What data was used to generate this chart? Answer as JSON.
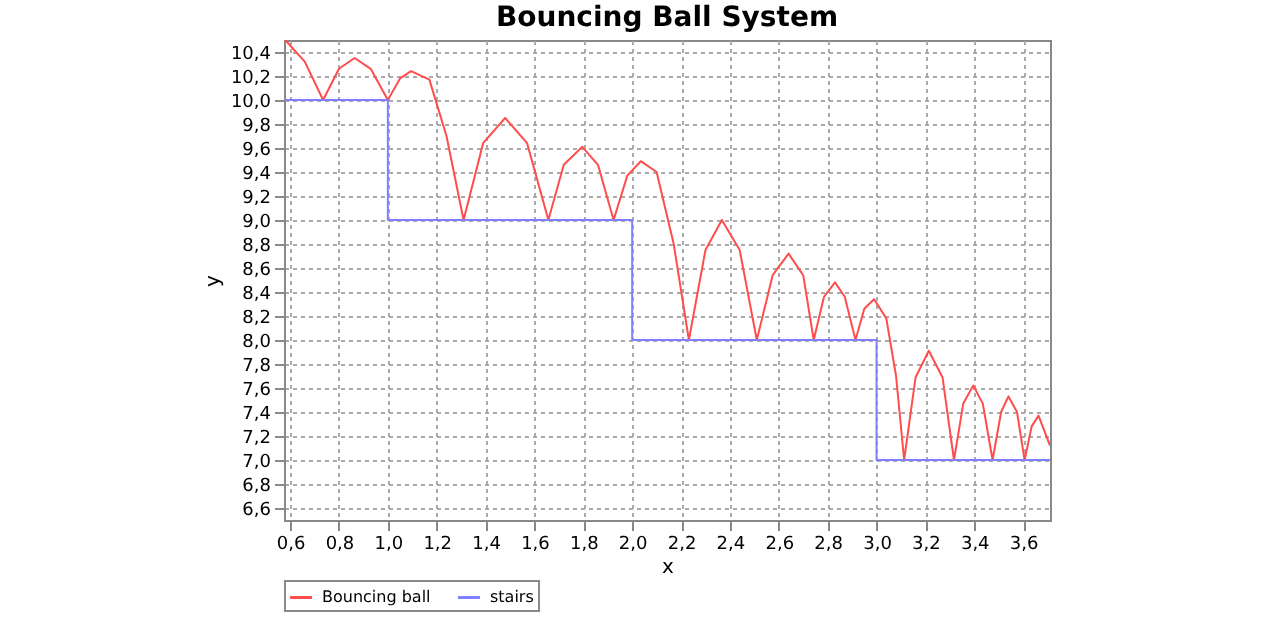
{
  "chart_data": {
    "type": "line",
    "title": "Bouncing Ball System",
    "xlabel": "x",
    "ylabel": "y",
    "series": [
      {
        "name": "Bouncing ball",
        "color": "#ff4d4d",
        "type": "line",
        "x": [
          0.58,
          0.66,
          0.735,
          0.8,
          0.864,
          0.93,
          1.0,
          1.05,
          1.095,
          1.17,
          1.24,
          1.31,
          1.39,
          1.48,
          1.57,
          1.657,
          1.72,
          1.796,
          1.86,
          1.924,
          1.98,
          2.035,
          2.1,
          2.17,
          2.232,
          2.3,
          2.367,
          2.44,
          2.51,
          2.575,
          2.64,
          2.7,
          2.743,
          2.785,
          2.83,
          2.87,
          2.914,
          2.95,
          2.99,
          3.04,
          3.08,
          3.113,
          3.16,
          3.214,
          3.27,
          3.317,
          3.355,
          3.396,
          3.435,
          3.475,
          3.51,
          3.54,
          3.575,
          3.606,
          3.635,
          3.663,
          3.71
        ],
        "values": [
          10.5,
          10.32,
          10.0,
          10.26,
          10.35,
          10.26,
          10.0,
          10.18,
          10.24,
          10.17,
          9.7,
          9.0,
          9.64,
          9.85,
          9.64,
          9.0,
          9.46,
          9.61,
          9.46,
          9.0,
          9.37,
          9.49,
          9.4,
          8.8,
          8.0,
          8.75,
          9.0,
          8.75,
          8.0,
          8.54,
          8.72,
          8.54,
          8.0,
          8.36,
          8.48,
          8.36,
          8.0,
          8.26,
          8.34,
          8.18,
          7.7,
          7.0,
          7.69,
          7.91,
          7.69,
          7.0,
          7.47,
          7.62,
          7.47,
          7.0,
          7.4,
          7.53,
          7.4,
          7.0,
          7.28,
          7.37,
          7.12
        ]
      },
      {
        "name": "stairs",
        "color": "#7f7fff",
        "type": "step",
        "x": [
          0.58,
          1.0,
          2.0,
          3.0,
          3.71
        ],
        "values": [
          10,
          9,
          8,
          7,
          7
        ]
      }
    ],
    "xlim": [
      0.575,
      3.71
    ],
    "ylim": [
      6.5,
      10.5
    ],
    "xticks": [
      {
        "value": 0.6,
        "label": "0,6"
      },
      {
        "value": 0.8,
        "label": "0,8"
      },
      {
        "value": 1.0,
        "label": "1,0"
      },
      {
        "value": 1.2,
        "label": "1,2"
      },
      {
        "value": 1.4,
        "label": "1,4"
      },
      {
        "value": 1.6,
        "label": "1,6"
      },
      {
        "value": 1.8,
        "label": "1,8"
      },
      {
        "value": 2.0,
        "label": "2,0"
      },
      {
        "value": 2.2,
        "label": "2,2"
      },
      {
        "value": 2.4,
        "label": "2,4"
      },
      {
        "value": 2.6,
        "label": "2,6"
      },
      {
        "value": 2.8,
        "label": "2,8"
      },
      {
        "value": 3.0,
        "label": "3,0"
      },
      {
        "value": 3.2,
        "label": "3,2"
      },
      {
        "value": 3.4,
        "label": "3,4"
      },
      {
        "value": 3.6,
        "label": "3,6"
      }
    ],
    "yticks": [
      {
        "value": 6.6,
        "label": "6,6"
      },
      {
        "value": 6.8,
        "label": "6,8"
      },
      {
        "value": 7.0,
        "label": "7,0"
      },
      {
        "value": 7.2,
        "label": "7,2"
      },
      {
        "value": 7.4,
        "label": "7,4"
      },
      {
        "value": 7.6,
        "label": "7,6"
      },
      {
        "value": 7.8,
        "label": "7,8"
      },
      {
        "value": 8.0,
        "label": "8,0"
      },
      {
        "value": 8.2,
        "label": "8,2"
      },
      {
        "value": 8.4,
        "label": "8,4"
      },
      {
        "value": 8.6,
        "label": "8,6"
      },
      {
        "value": 8.8,
        "label": "8,8"
      },
      {
        "value": 9.0,
        "label": "9,0"
      },
      {
        "value": 9.2,
        "label": "9,2"
      },
      {
        "value": 9.4,
        "label": "9,4"
      },
      {
        "value": 9.6,
        "label": "9,6"
      },
      {
        "value": 9.8,
        "label": "9,8"
      },
      {
        "value": 10.0,
        "label": "10,0"
      },
      {
        "value": 10.2,
        "label": "10,2"
      },
      {
        "value": 10.4,
        "label": "10,4"
      }
    ],
    "grid": true,
    "legend": "bottom",
    "marker": "none",
    "line_style": "solid"
  }
}
